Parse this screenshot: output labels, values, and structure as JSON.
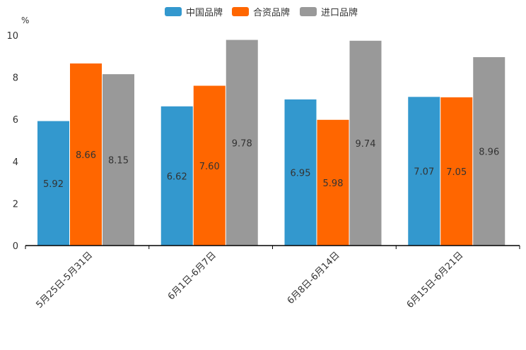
{
  "chart_data": {
    "type": "bar",
    "unit_label": "%",
    "categories": [
      "5月25日-5月31日",
      "6月1日-6月7日",
      "6月8日-6月14日",
      "6月15日-6月21日"
    ],
    "series": [
      {
        "name": "中国品牌",
        "color": "#3398CE",
        "values": [
          5.92,
          6.62,
          6.95,
          7.07
        ]
      },
      {
        "name": "合资品牌",
        "color": "#FF6600",
        "values": [
          8.66,
          7.6,
          5.98,
          7.05
        ]
      },
      {
        "name": "进口品牌",
        "color": "#999999",
        "values": [
          8.15,
          9.78,
          9.74,
          8.96
        ]
      }
    ],
    "ylim": [
      0,
      10
    ],
    "yticks": [
      0,
      2,
      4,
      6,
      8,
      10
    ],
    "legend_position": "top-center",
    "grid": false
  }
}
